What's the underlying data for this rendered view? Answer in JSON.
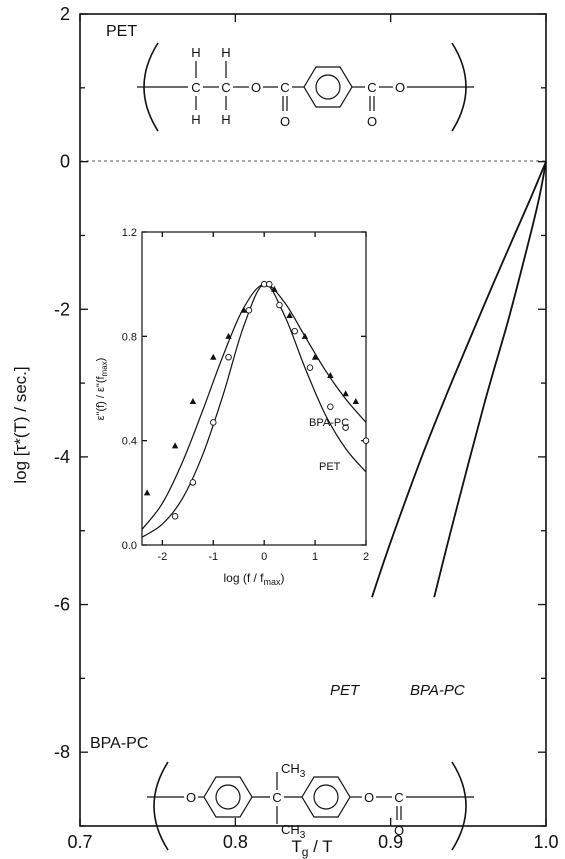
{
  "chart_data": [
    {
      "type": "line",
      "title": "",
      "xlabel": "T_g / T",
      "ylabel": "log [τ*(T) / sec.]",
      "xlim": [
        0.7,
        1.0
      ],
      "ylim": [
        -9,
        2
      ],
      "xticks": [
        0.7,
        0.8,
        0.9,
        1.0
      ],
      "xtick_labels": [
        "0.7",
        "0.8",
        "0.9",
        "1.0"
      ],
      "yticks": [
        2,
        0,
        -2,
        -4,
        -6,
        -8
      ],
      "ytick_labels": [
        "2",
        "0",
        "-2",
        "-4",
        "-6",
        "-8"
      ],
      "reference_line_y": 0,
      "series": [
        {
          "name": "PET",
          "x": [
            0.888,
            0.9,
            0.92,
            0.94,
            0.96,
            0.98,
            0.99,
            1.0
          ],
          "y": [
            -5.9,
            -5.15,
            -4.0,
            -2.95,
            -1.95,
            -0.98,
            -0.5,
            0.0
          ]
        },
        {
          "name": "BPA-PC",
          "x": [
            0.928,
            0.94,
            0.96,
            0.975,
            0.985,
            0.995,
            1.0
          ],
          "y": [
            -5.9,
            -4.9,
            -3.3,
            -2.2,
            -1.4,
            -0.55,
            0.0
          ]
        }
      ],
      "annotations": [
        "PET",
        "BPA-PC"
      ]
    },
    {
      "type": "scatter",
      "title": "",
      "xlabel": "log (f / f_max)",
      "ylabel": "ε\"(f) / ε\"(f_max)",
      "xlim": [
        -2.4,
        2.0
      ],
      "ylim": [
        0.0,
        1.2
      ],
      "xticks": [
        -2,
        -1,
        0,
        1,
        2
      ],
      "xtick_labels": [
        "-2",
        "-1",
        "0",
        "1",
        "2"
      ],
      "yticks": [
        0.0,
        0.4,
        0.8,
        1.2
      ],
      "ytick_labels": [
        "0.0",
        "0.4",
        "0.8",
        "1.2"
      ],
      "series": [
        {
          "name": "BPA-PC",
          "marker": "triangle",
          "points_x": [
            -2.3,
            -1.75,
            -1.4,
            -1.0,
            -0.7,
            -0.4,
            0.0,
            0.2,
            0.5,
            0.8,
            1.0,
            1.3,
            1.6,
            1.8
          ],
          "points_y": [
            0.2,
            0.38,
            0.55,
            0.72,
            0.8,
            0.9,
            1.0,
            0.98,
            0.88,
            0.8,
            0.72,
            0.65,
            0.58,
            0.55
          ],
          "fit_x": [
            -2.4,
            -2.0,
            -1.6,
            -1.2,
            -0.8,
            -0.4,
            0.0,
            0.4,
            0.8,
            1.2,
            1.6,
            2.0
          ],
          "fit_y": [
            0.06,
            0.16,
            0.32,
            0.52,
            0.73,
            0.91,
            1.0,
            0.93,
            0.8,
            0.67,
            0.56,
            0.47
          ]
        },
        {
          "name": "PET",
          "marker": "circle",
          "points_x": [
            -1.75,
            -1.4,
            -1.0,
            -0.7,
            -0.3,
            0.0,
            0.1,
            0.3,
            0.6,
            0.9,
            1.3,
            1.6,
            2.0
          ],
          "points_y": [
            0.11,
            0.24,
            0.47,
            0.72,
            0.9,
            1.0,
            1.0,
            0.92,
            0.82,
            0.68,
            0.53,
            0.45,
            0.4
          ],
          "fit_x": [
            -2.4,
            -2.0,
            -1.6,
            -1.2,
            -0.8,
            -0.4,
            0.0,
            0.4,
            0.8,
            1.2,
            1.6,
            2.0
          ],
          "fit_y": [
            0.03,
            0.08,
            0.18,
            0.35,
            0.58,
            0.84,
            1.0,
            0.88,
            0.68,
            0.5,
            0.37,
            0.28
          ]
        }
      ]
    }
  ],
  "structures": {
    "pet": {
      "name": "PET",
      "atoms": [
        "H",
        "H",
        "C",
        "C",
        "O",
        "C",
        "C",
        "O",
        "H",
        "H",
        "O",
        "O"
      ]
    },
    "bpapc": {
      "name": "BPA-PC",
      "atoms": [
        "O",
        "C",
        "O",
        "C",
        "O"
      ],
      "methyl": "CH",
      "methyl_sub": "3"
    }
  }
}
